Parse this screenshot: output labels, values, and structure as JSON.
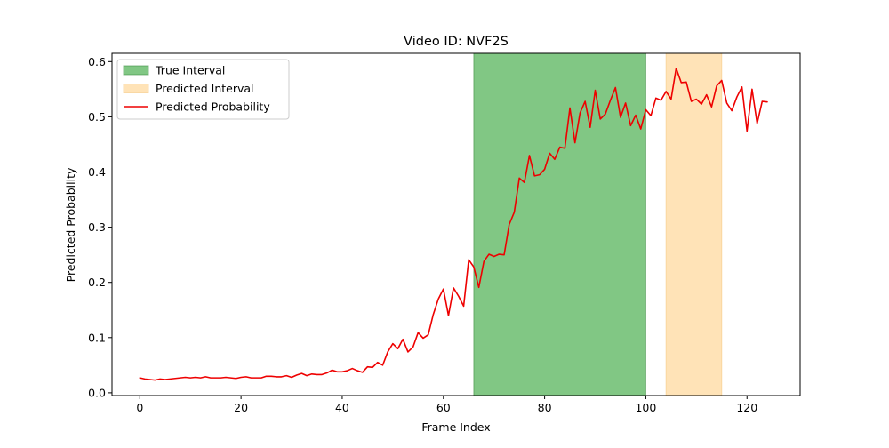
{
  "chart_data": {
    "type": "line",
    "title": "Video ID: NVF2S",
    "xlabel": "Frame Index",
    "ylabel": "Predicted Probability",
    "xlim": [
      -5.5,
      130.5
    ],
    "ylim": [
      -0.005,
      0.615
    ],
    "xticks": [
      0,
      20,
      40,
      60,
      80,
      100,
      120
    ],
    "yticks": [
      0.0,
      0.1,
      0.2,
      0.3,
      0.4,
      0.5,
      0.6
    ],
    "xtick_labels": [
      "0",
      "20",
      "40",
      "60",
      "80",
      "100",
      "120"
    ],
    "ytick_labels": [
      "0.0",
      "0.1",
      "0.2",
      "0.3",
      "0.4",
      "0.5",
      "0.6"
    ],
    "grid": false,
    "legend_position": "top-left",
    "intervals": [
      {
        "name": "True Interval",
        "start": 66,
        "end": 100,
        "color": "#4caf50"
      },
      {
        "name": "Predicted Interval",
        "start": 104,
        "end": 115,
        "color": "#ffc870"
      }
    ],
    "series": [
      {
        "name": "Predicted Probability",
        "color": "#ee0000",
        "x": [
          0,
          1,
          2,
          3,
          4,
          5,
          6,
          7,
          8,
          9,
          10,
          11,
          12,
          13,
          14,
          15,
          16,
          17,
          18,
          19,
          20,
          21,
          22,
          23,
          24,
          25,
          26,
          27,
          28,
          29,
          30,
          31,
          32,
          33,
          34,
          35,
          36,
          37,
          38,
          39,
          40,
          41,
          42,
          43,
          44,
          45,
          46,
          47,
          48,
          49,
          50,
          51,
          52,
          53,
          54,
          55,
          56,
          57,
          58,
          59,
          60,
          61,
          62,
          63,
          64,
          65,
          66,
          67,
          68,
          69,
          70,
          71,
          72,
          73,
          74,
          75,
          76,
          77,
          78,
          79,
          80,
          81,
          82,
          83,
          84,
          85,
          86,
          87,
          88,
          89,
          90,
          91,
          92,
          93,
          94,
          95,
          96,
          97,
          98,
          99,
          100,
          101,
          102,
          103,
          104,
          105,
          106,
          107,
          108,
          109,
          110,
          111,
          112,
          113,
          114,
          115,
          116,
          117,
          118,
          119,
          120,
          121,
          122,
          123,
          124
        ],
        "values": [
          0.027,
          0.025,
          0.024,
          0.023,
          0.025,
          0.024,
          0.025,
          0.026,
          0.027,
          0.028,
          0.027,
          0.028,
          0.027,
          0.029,
          0.027,
          0.027,
          0.027,
          0.028,
          0.027,
          0.026,
          0.028,
          0.029,
          0.027,
          0.027,
          0.027,
          0.03,
          0.03,
          0.029,
          0.029,
          0.031,
          0.028,
          0.032,
          0.035,
          0.031,
          0.034,
          0.033,
          0.033,
          0.036,
          0.041,
          0.038,
          0.038,
          0.04,
          0.044,
          0.04,
          0.037,
          0.047,
          0.046,
          0.055,
          0.05,
          0.074,
          0.089,
          0.08,
          0.097,
          0.074,
          0.083,
          0.109,
          0.099,
          0.105,
          0.142,
          0.17,
          0.188,
          0.14,
          0.19,
          0.175,
          0.157,
          0.241,
          0.228,
          0.191,
          0.238,
          0.251,
          0.247,
          0.251,
          0.25,
          0.305,
          0.327,
          0.389,
          0.381,
          0.43,
          0.393,
          0.395,
          0.405,
          0.434,
          0.423,
          0.445,
          0.443,
          0.516,
          0.453,
          0.507,
          0.528,
          0.481,
          0.548,
          0.496,
          0.505,
          0.53,
          0.553,
          0.499,
          0.525,
          0.484,
          0.503,
          0.478,
          0.513,
          0.502,
          0.534,
          0.53,
          0.546,
          0.532,
          0.588,
          0.562,
          0.563,
          0.528,
          0.532,
          0.523,
          0.54,
          0.518,
          0.556,
          0.566,
          0.525,
          0.511,
          0.536,
          0.554,
          0.474,
          0.55,
          0.488,
          0.528,
          0.527
        ]
      }
    ]
  }
}
